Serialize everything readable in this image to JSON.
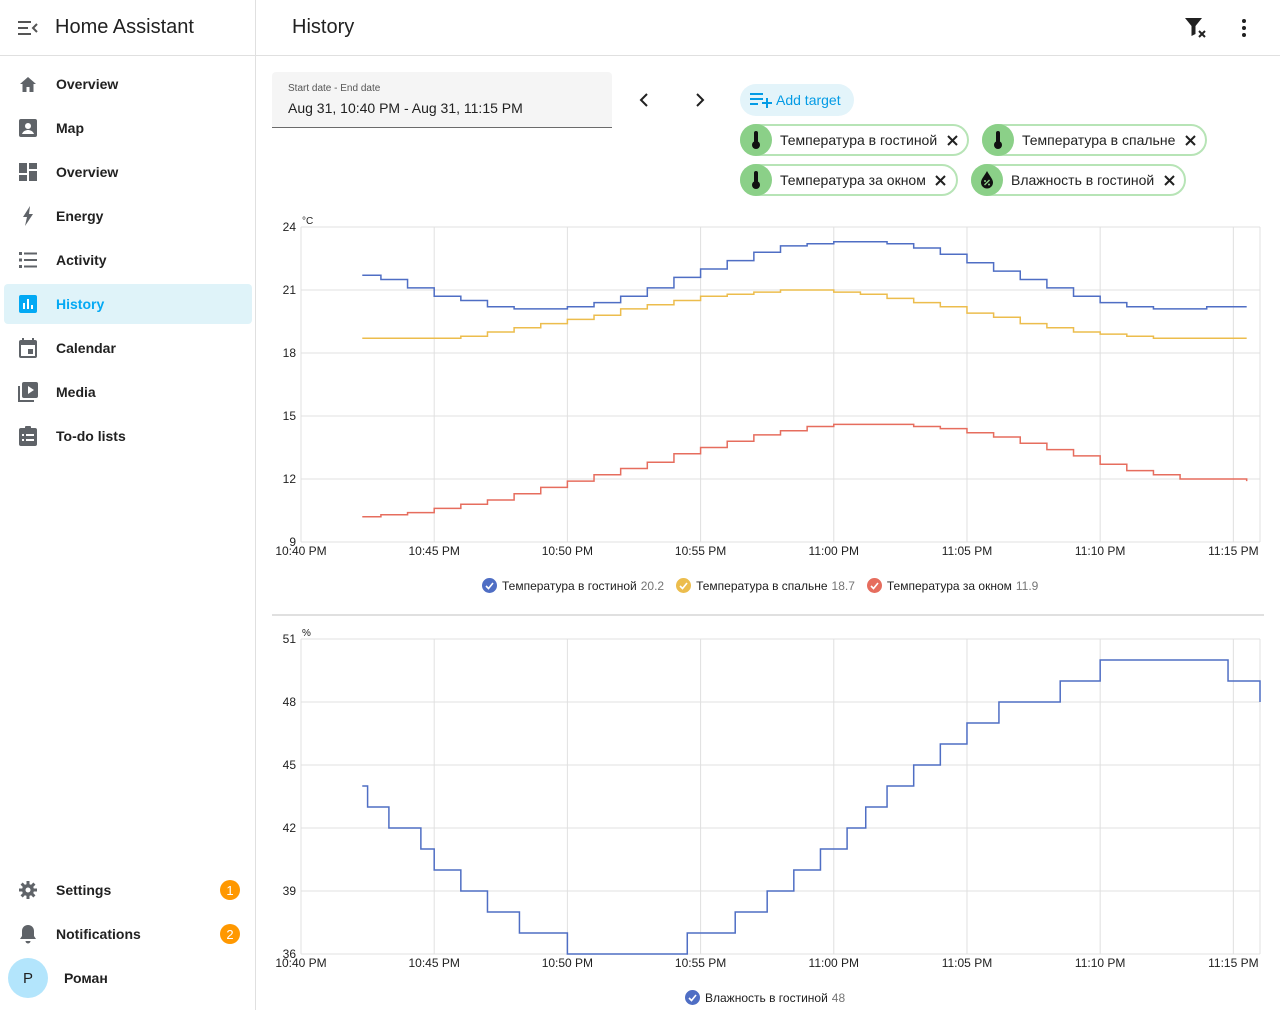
{
  "app": {
    "title": "Home Assistant"
  },
  "sidebar": {
    "items": [
      {
        "label": "Overview",
        "icon": "home-icon"
      },
      {
        "label": "Map",
        "icon": "map-account-icon"
      },
      {
        "label": "Overview",
        "icon": "dashboard-icon"
      },
      {
        "label": "Energy",
        "icon": "lightning-icon"
      },
      {
        "label": "Activity",
        "icon": "list-icon"
      },
      {
        "label": "History",
        "icon": "chart-box-icon",
        "selected": true
      },
      {
        "label": "Calendar",
        "icon": "calendar-icon"
      },
      {
        "label": "Media",
        "icon": "play-box-icon"
      },
      {
        "label": "To-do lists",
        "icon": "clipboard-list-icon"
      }
    ],
    "settings": {
      "label": "Settings",
      "badge": "1"
    },
    "notifications": {
      "label": "Notifications",
      "badge": "2"
    },
    "user": {
      "initial": "P",
      "name": "Роман"
    }
  },
  "header": {
    "title": "History"
  },
  "date_picker": {
    "caption": "Start date - End date",
    "value": "Aug 31, 10:40 PM - Aug 31, 11:15 PM"
  },
  "targets": {
    "add_label": "Add target",
    "chips": [
      {
        "label": "Температура в гостиной",
        "icon": "thermometer-icon"
      },
      {
        "label": "Температура в спальне",
        "icon": "thermometer-icon"
      },
      {
        "label": "Температура за окном",
        "icon": "thermometer-icon"
      },
      {
        "label": "Влажность в гостиной",
        "icon": "water-percent-icon"
      }
    ]
  },
  "colors": {
    "accent": "#03a9f4",
    "chip_bg": "#8bd088",
    "blue": "#4f6ec4",
    "yellow": "#ecbd4d",
    "red": "#e66d5e"
  },
  "chart_data": [
    {
      "type": "line",
      "unit": "°C",
      "ylim": [
        9,
        24
      ],
      "yticks": [
        9,
        12,
        15,
        18,
        21,
        24
      ],
      "xticks": [
        "10:40 PM",
        "10:45 PM",
        "10:50 PM",
        "10:55 PM",
        "11:00 PM",
        "11:05 PM",
        "11:10 PM",
        "11:15 PM"
      ],
      "xlim_minutes": [
        0,
        36
      ],
      "step": true,
      "series": [
        {
          "name": "Температура в гостиной",
          "current": "20.2",
          "color": "#4f6ec4",
          "points": [
            [
              2.3,
              21.7
            ],
            [
              3.0,
              21.5
            ],
            [
              4.0,
              21.1
            ],
            [
              5.0,
              20.7
            ],
            [
              6.0,
              20.5
            ],
            [
              7.0,
              20.2
            ],
            [
              8.0,
              20.1
            ],
            [
              9.0,
              20.1
            ],
            [
              10.0,
              20.2
            ],
            [
              11.0,
              20.4
            ],
            [
              12.0,
              20.7
            ],
            [
              13.0,
              21.1
            ],
            [
              14.0,
              21.6
            ],
            [
              15.0,
              22.0
            ],
            [
              16.0,
              22.4
            ],
            [
              17.0,
              22.8
            ],
            [
              18.0,
              23.1
            ],
            [
              19.0,
              23.2
            ],
            [
              20.0,
              23.3
            ],
            [
              21.0,
              23.3
            ],
            [
              22.0,
              23.2
            ],
            [
              23.0,
              23.0
            ],
            [
              24.0,
              22.7
            ],
            [
              25.0,
              22.3
            ],
            [
              26.0,
              21.9
            ],
            [
              27.0,
              21.5
            ],
            [
              28.0,
              21.1
            ],
            [
              29.0,
              20.7
            ],
            [
              30.0,
              20.4
            ],
            [
              31.0,
              20.2
            ],
            [
              32.0,
              20.1
            ],
            [
              33.0,
              20.1
            ],
            [
              34.0,
              20.2
            ],
            [
              35.5,
              20.2
            ]
          ]
        },
        {
          "name": "Температура в спальне",
          "current": "18.7",
          "color": "#ecbd4d",
          "points": [
            [
              2.3,
              18.7
            ],
            [
              3.0,
              18.7
            ],
            [
              4.0,
              18.7
            ],
            [
              5.0,
              18.7
            ],
            [
              6.0,
              18.8
            ],
            [
              7.0,
              19.0
            ],
            [
              8.0,
              19.2
            ],
            [
              9.0,
              19.4
            ],
            [
              10.0,
              19.6
            ],
            [
              11.0,
              19.8
            ],
            [
              12.0,
              20.1
            ],
            [
              13.0,
              20.3
            ],
            [
              14.0,
              20.5
            ],
            [
              15.0,
              20.7
            ],
            [
              16.0,
              20.8
            ],
            [
              17.0,
              20.9
            ],
            [
              18.0,
              21.0
            ],
            [
              19.0,
              21.0
            ],
            [
              20.0,
              20.9
            ],
            [
              21.0,
              20.8
            ],
            [
              22.0,
              20.6
            ],
            [
              23.0,
              20.4
            ],
            [
              24.0,
              20.2
            ],
            [
              25.0,
              19.9
            ],
            [
              26.0,
              19.7
            ],
            [
              27.0,
              19.4
            ],
            [
              28.0,
              19.2
            ],
            [
              29.0,
              19.0
            ],
            [
              30.0,
              18.9
            ],
            [
              31.0,
              18.8
            ],
            [
              32.0,
              18.7
            ],
            [
              33.0,
              18.7
            ],
            [
              35.5,
              18.7
            ]
          ]
        },
        {
          "name": "Температура за окном",
          "current": "11.9",
          "color": "#e66d5e",
          "points": [
            [
              2.3,
              10.2
            ],
            [
              3.0,
              10.3
            ],
            [
              4.0,
              10.4
            ],
            [
              5.0,
              10.6
            ],
            [
              6.0,
              10.8
            ],
            [
              7.0,
              11.0
            ],
            [
              8.0,
              11.3
            ],
            [
              9.0,
              11.6
            ],
            [
              10.0,
              11.9
            ],
            [
              11.0,
              12.2
            ],
            [
              12.0,
              12.5
            ],
            [
              13.0,
              12.8
            ],
            [
              14.0,
              13.2
            ],
            [
              15.0,
              13.5
            ],
            [
              16.0,
              13.8
            ],
            [
              17.0,
              14.1
            ],
            [
              18.0,
              14.3
            ],
            [
              19.0,
              14.5
            ],
            [
              20.0,
              14.6
            ],
            [
              21.0,
              14.6
            ],
            [
              22.0,
              14.6
            ],
            [
              23.0,
              14.5
            ],
            [
              24.0,
              14.4
            ],
            [
              25.0,
              14.2
            ],
            [
              26.0,
              14.0
            ],
            [
              27.0,
              13.7
            ],
            [
              28.0,
              13.4
            ],
            [
              29.0,
              13.1
            ],
            [
              30.0,
              12.7
            ],
            [
              31.0,
              12.4
            ],
            [
              32.0,
              12.2
            ],
            [
              33.0,
              12.0
            ],
            [
              35.5,
              11.9
            ]
          ]
        }
      ]
    },
    {
      "type": "line",
      "unit": "%",
      "ylim": [
        36,
        51
      ],
      "yticks": [
        36,
        39,
        42,
        45,
        48,
        51
      ],
      "xticks": [
        "10:40 PM",
        "10:45 PM",
        "10:50 PM",
        "10:55 PM",
        "11:00 PM",
        "11:05 PM",
        "11:10 PM",
        "11:15 PM"
      ],
      "xlim_minutes": [
        0,
        36
      ],
      "step": true,
      "series": [
        {
          "name": "Влажность в гостиной",
          "current": "48",
          "color": "#4f6ec4",
          "points": [
            [
              2.3,
              44
            ],
            [
              2.5,
              43
            ],
            [
              3.3,
              42
            ],
            [
              4.5,
              41
            ],
            [
              5.0,
              40
            ],
            [
              6.0,
              39
            ],
            [
              7.0,
              38
            ],
            [
              8.2,
              37
            ],
            [
              10.0,
              36
            ],
            [
              14.5,
              37
            ],
            [
              16.3,
              38
            ],
            [
              17.5,
              39
            ],
            [
              18.5,
              40
            ],
            [
              19.5,
              41
            ],
            [
              20.5,
              42
            ],
            [
              21.2,
              43
            ],
            [
              22.0,
              44
            ],
            [
              23.0,
              45
            ],
            [
              24.0,
              46
            ],
            [
              25.0,
              47
            ],
            [
              26.2,
              48
            ],
            [
              28.5,
              49
            ],
            [
              30.0,
              50
            ],
            [
              34.8,
              49
            ],
            [
              36.0,
              48
            ]
          ]
        }
      ]
    }
  ]
}
